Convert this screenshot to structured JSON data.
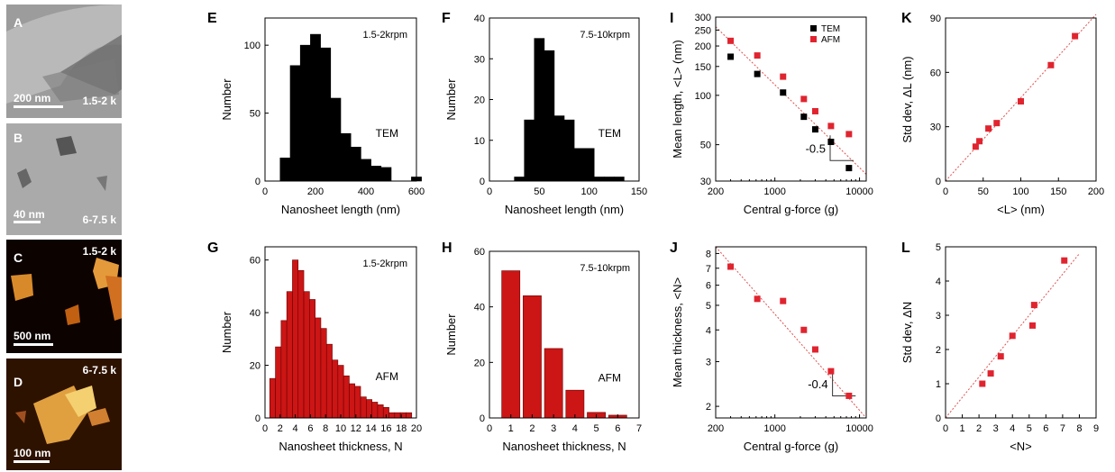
{
  "images": [
    {
      "letter": "A",
      "label": "1.5-2 k",
      "scale": "200 nm",
      "bg": "#9a9a9a"
    },
    {
      "letter": "B",
      "label": "6-7.5 k",
      "scale": "40 nm",
      "bg": "#a9a9a9"
    },
    {
      "letter": "C",
      "label": "1.5-2 k",
      "scale": "500 nm",
      "bg": "#0c0200"
    },
    {
      "letter": "D",
      "label": "6-7.5 k",
      "scale": "100 nm",
      "bg": "#2e1200"
    }
  ],
  "colors": {
    "tem": "#000000",
    "afm": "#e0242f",
    "afm_bar": "#cc1515",
    "dash": "#e05050"
  },
  "chart_data": [
    {
      "panel": "E",
      "type": "bar",
      "annotation": "1.5-2krpm",
      "method": "TEM",
      "fill": "black",
      "xlabel": "Nanosheet length (nm)",
      "ylabel": "Number",
      "xlim": [
        0,
        600
      ],
      "ylim": [
        0,
        120
      ],
      "xticks": [
        0,
        200,
        400,
        600
      ],
      "yticks": [
        0,
        50,
        100
      ],
      "bin_width": 40,
      "x": [
        80,
        120,
        160,
        200,
        240,
        280,
        320,
        360,
        400,
        440,
        480,
        520,
        560,
        600
      ],
      "values": [
        17,
        85,
        100,
        108,
        98,
        61,
        35,
        25,
        16,
        11,
        10,
        0,
        0,
        3
      ]
    },
    {
      "panel": "F",
      "type": "bar",
      "annotation": "7.5-10krpm",
      "method": "TEM",
      "fill": "black",
      "xlabel": "Nanosheet length (nm)",
      "ylabel": "Number",
      "xlim": [
        0,
        150
      ],
      "ylim": [
        0,
        40
      ],
      "xticks": [
        0,
        50,
        100,
        150
      ],
      "yticks": [
        0,
        10,
        20,
        30,
        40
      ],
      "bin_width": 10,
      "x": [
        30,
        40,
        50,
        60,
        70,
        80,
        90,
        100,
        110,
        120,
        130
      ],
      "values": [
        1,
        15,
        35,
        32,
        16,
        15,
        8,
        8,
        1,
        1,
        1
      ]
    },
    {
      "panel": "G",
      "type": "bar",
      "annotation": "1.5-2krpm",
      "method": "AFM",
      "fill": "red",
      "xlabel": "Nanosheet thickness, N",
      "ylabel": "Number",
      "xlim": [
        0,
        20
      ],
      "ylim": [
        0,
        65
      ],
      "xticks": [
        0,
        2,
        4,
        6,
        8,
        10,
        12,
        14,
        16,
        18,
        20
      ],
      "yticks": [
        0,
        20,
        40,
        60
      ],
      "bin_width": 0.75,
      "x": [
        1,
        1.75,
        2.5,
        3.25,
        4,
        4.75,
        5.5,
        6.25,
        7,
        7.75,
        8.5,
        9.25,
        10,
        10.75,
        11.5,
        12.25,
        13,
        13.75,
        14.5,
        15.25,
        16,
        16.75,
        17.5,
        18.25,
        19
      ],
      "values": [
        15,
        27,
        37,
        48,
        60,
        56,
        48,
        45,
        38,
        34,
        28,
        22,
        20,
        16,
        13,
        12,
        8,
        7,
        6,
        5,
        4,
        2,
        2,
        2,
        2
      ]
    },
    {
      "panel": "H",
      "type": "bar",
      "annotation": "7.5-10krpm",
      "method": "AFM",
      "fill": "red",
      "xlabel": "Nanosheet thickness, N",
      "ylabel": "Number",
      "xlim": [
        0,
        7
      ],
      "ylim": [
        0,
        60
      ],
      "xticks": [
        0,
        1,
        2,
        3,
        4,
        5,
        6,
        7
      ],
      "yticks": [
        0,
        20,
        40,
        60
      ],
      "bin_width": 0.85,
      "x": [
        1,
        2,
        3,
        4,
        5,
        6
      ],
      "values": [
        53,
        44,
        25,
        10,
        2,
        1
      ]
    },
    {
      "panel": "I",
      "type": "scatter",
      "scale": "log-log",
      "xlabel": "Central g-force (g)",
      "ylabel": "Mean length, <L> (nm)",
      "xlim": [
        200,
        12000
      ],
      "ylim": [
        30,
        300
      ],
      "xticks": [
        200,
        1000,
        10000
      ],
      "xticklabels": [
        "200",
        "1000",
        "10000"
      ],
      "yticks": [
        30,
        50,
        100,
        150,
        200,
        250,
        300
      ],
      "yticklabels": [
        "30",
        "50",
        "100",
        "150",
        "200",
        "250",
        "300"
      ],
      "legend": [
        {
          "name": "TEM",
          "series": 0
        },
        {
          "name": "AFM",
          "series": 1
        }
      ],
      "series": [
        {
          "name": "TEM",
          "marker": "black",
          "x": [
            300,
            620,
            1250,
            2200,
            3000,
            4600,
            7500
          ],
          "y": [
            172,
            135,
            104,
            74,
            62,
            52,
            36
          ]
        },
        {
          "name": "AFM",
          "marker": "red",
          "x": [
            300,
            620,
            1250,
            2200,
            3000,
            4600,
            7500
          ],
          "y": [
            215,
            175,
            130,
            95,
            80,
            65,
            58
          ]
        }
      ],
      "fit": {
        "x": [
          200,
          12000
        ],
        "y": [
          262,
          33
        ]
      },
      "slope_label": "-0.5",
      "triangle": {
        "x": [
          4500,
          8500
        ],
        "y": [
          57,
          40
        ]
      }
    },
    {
      "panel": "J",
      "type": "scatter",
      "scale": "log-log",
      "xlabel": "Central g-force (g)",
      "ylabel": "Mean thickness, <N>",
      "xlim": [
        200,
        12000
      ],
      "ylim": [
        1.8,
        8.5
      ],
      "xticks": [
        200,
        1000,
        10000
      ],
      "xticklabels": [
        "200",
        "1000",
        "10000"
      ],
      "yticks": [
        2,
        3,
        4,
        5,
        6,
        7,
        8
      ],
      "yticklabels": [
        "2",
        "3",
        "4",
        "5",
        "6",
        "7",
        "8"
      ],
      "series": [
        {
          "name": "AFM",
          "marker": "red",
          "x": [
            300,
            620,
            1250,
            2200,
            3000,
            4600,
            7500
          ],
          "y": [
            7.1,
            5.3,
            5.2,
            4.0,
            3.35,
            2.75,
            2.2
          ]
        }
      ],
      "fit": {
        "x": [
          200,
          12000
        ],
        "y": [
          8.5,
          1.8
        ]
      },
      "slope_label": "-0.4",
      "triangle": {
        "x": [
          4800,
          9000
        ],
        "y": [
          2.75,
          2.2
        ]
      }
    },
    {
      "panel": "K",
      "type": "scatter",
      "xlabel": "<L> (nm)",
      "ylabel": "Std dev, ΔL (nm)",
      "xlim": [
        0,
        200
      ],
      "ylim": [
        0,
        90
      ],
      "xticks": [
        0,
        50,
        100,
        150,
        200
      ],
      "yticks": [
        0,
        30,
        60,
        90
      ],
      "series": [
        {
          "name": "",
          "marker": "red",
          "x": [
            40,
            45,
            57,
            68,
            100,
            140,
            172
          ],
          "y": [
            19,
            22,
            29,
            32,
            44,
            64,
            80
          ]
        }
      ],
      "fit": {
        "x": [
          0,
          200
        ],
        "y": [
          0,
          92
        ]
      }
    },
    {
      "panel": "L",
      "type": "scatter",
      "xlabel": "<N>",
      "ylabel": "Std dev, ΔN",
      "xlim": [
        0,
        9
      ],
      "ylim": [
        0,
        5
      ],
      "xticks": [
        0,
        1,
        2,
        3,
        4,
        5,
        6,
        7,
        8,
        9
      ],
      "yticks": [
        0,
        1,
        2,
        3,
        4,
        5
      ],
      "series": [
        {
          "name": "",
          "marker": "red",
          "x": [
            2.2,
            2.7,
            3.3,
            4.0,
            5.2,
            5.3,
            7.1
          ],
          "y": [
            1.0,
            1.3,
            1.8,
            2.4,
            2.7,
            3.3,
            4.6
          ]
        }
      ],
      "fit": {
        "x": [
          0,
          8
        ],
        "y": [
          0,
          4.8
        ]
      }
    }
  ]
}
